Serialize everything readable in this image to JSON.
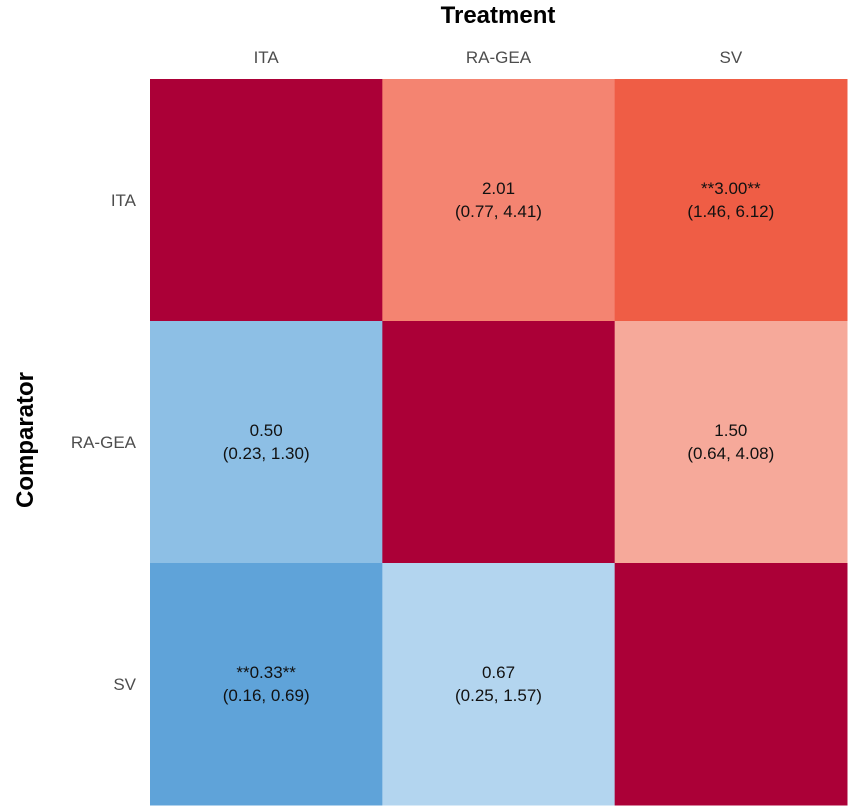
{
  "chart_data": {
    "type": "heatmap",
    "title": "Treatment",
    "xlabel": "Treatment",
    "ylabel": "Comparator",
    "x_categories": [
      "ITA",
      "RA-GEA",
      "SV"
    ],
    "y_categories": [
      "ITA",
      "RA-GEA",
      "SV"
    ],
    "cells": [
      {
        "row": 0,
        "col": 0,
        "value": null,
        "label": "",
        "ci": "",
        "color": "#AB0037"
      },
      {
        "row": 0,
        "col": 1,
        "value": 2.01,
        "label": "2.01",
        "ci": "(0.77, 4.41)",
        "color": "#F48471"
      },
      {
        "row": 0,
        "col": 2,
        "value": 3.0,
        "label": "**3.00**",
        "ci": "(1.46, 6.12)",
        "color": "#EF5D45"
      },
      {
        "row": 1,
        "col": 0,
        "value": 0.5,
        "label": "0.50",
        "ci": "(0.23, 1.30)",
        "color": "#8DBFE5"
      },
      {
        "row": 1,
        "col": 1,
        "value": null,
        "label": "",
        "ci": "",
        "color": "#AB0037"
      },
      {
        "row": 1,
        "col": 2,
        "value": 1.5,
        "label": "1.50",
        "ci": "(0.64, 4.08)",
        "color": "#F6A99A"
      },
      {
        "row": 2,
        "col": 0,
        "value": 0.33,
        "label": "**0.33**",
        "ci": "(0.16, 0.69)",
        "color": "#5FA3D9"
      },
      {
        "row": 2,
        "col": 1,
        "value": 0.67,
        "label": "0.67",
        "ci": "(0.25, 1.57)",
        "color": "#B3D5EF"
      },
      {
        "row": 2,
        "col": 2,
        "value": null,
        "label": "",
        "ci": "",
        "color": "#AB0037"
      }
    ],
    "grid": false,
    "legend": "none"
  }
}
